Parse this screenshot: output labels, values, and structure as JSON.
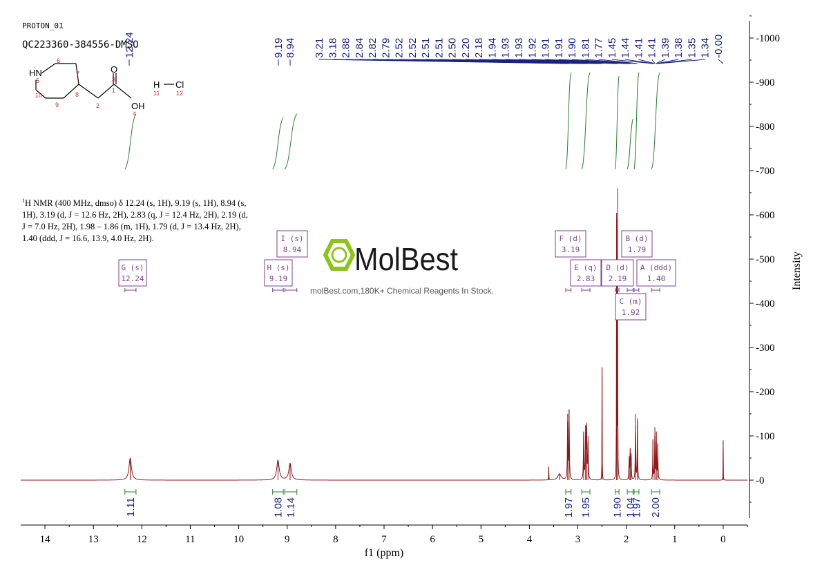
{
  "header": {
    "experiment": "PROTON_01",
    "sample": "QC223360-384556-DMSO"
  },
  "structure": {
    "atoms": {
      "nh": "HN",
      "o_carbonyl": "O",
      "oh": "OH",
      "h": "H",
      "cl": "Cl"
    },
    "numbers": [
      "1",
      "2",
      "3",
      "4",
      "5",
      "6",
      "7",
      "8",
      "9",
      "10",
      "11",
      "12"
    ]
  },
  "nmr_description": {
    "line1": "H NMR (400 MHz, dmso) δ 12.24 (s, 1H), 9.19 (s, 1H), 8.94 (s,",
    "nucleus_sup": "1",
    "line2": "1H), 3.19 (d, J = 12.6 Hz, 2H), 2.83 (q, J = 12.4 Hz, 2H), 2.19 (d,",
    "line3": "J = 7.0 Hz, 2H), 1.98 – 1.86 (m, 1H), 1.79 (d, J = 13.4 Hz, 2H),",
    "line4": "1.40 (ddd, J = 16.6, 13.9, 4.0 Hz, 2H)."
  },
  "watermark": {
    "brand": "MolBest",
    "tagline": "molBest.com,180K+ Chemical Reagents In Stock.",
    "color": "#8dc21f"
  },
  "chart_data": {
    "type": "line",
    "xlabel": "f1 (ppm)",
    "ylabel": "Intensity",
    "xlim": [
      14.5,
      -0.5
    ],
    "ylim": [
      -100,
      1050
    ],
    "x_ticks": [
      14,
      13,
      12,
      11,
      10,
      9,
      8,
      7,
      6,
      5,
      4,
      3,
      2,
      1,
      0
    ],
    "y_ticks": [
      0,
      100,
      200,
      300,
      400,
      500,
      600,
      700,
      800,
      900,
      1000
    ],
    "peak_labels": [
      "12.24",
      "9.19",
      "8.94",
      "3.21",
      "3.18",
      "2.88",
      "2.84",
      "2.82",
      "2.79",
      "2.52",
      "2.52",
      "2.51",
      "2.51",
      "2.50",
      "2.20",
      "2.18",
      "1.94",
      "1.93",
      "1.93",
      "1.92",
      "1.91",
      "1.91",
      "1.90",
      "1.81",
      "1.77",
      "1.45",
      "1.44",
      "1.41",
      "1.41",
      "1.39",
      "1.38",
      "1.35",
      "1.34",
      "-0.00"
    ],
    "peaks": [
      {
        "ppm": 12.24,
        "height": 50,
        "width": 0.06
      },
      {
        "ppm": 9.19,
        "height": 45,
        "width": 0.06
      },
      {
        "ppm": 8.94,
        "height": 38,
        "width": 0.06
      },
      {
        "ppm": 3.6,
        "height": 30,
        "width": 0.006
      },
      {
        "ppm": 3.38,
        "height": 14,
        "width": 0.08
      },
      {
        "ppm": 3.21,
        "height": 150,
        "width": 0.012
      },
      {
        "ppm": 3.18,
        "height": 160,
        "width": 0.012
      },
      {
        "ppm": 2.88,
        "height": 110,
        "width": 0.012
      },
      {
        "ppm": 2.84,
        "height": 125,
        "width": 0.012
      },
      {
        "ppm": 2.82,
        "height": 120,
        "width": 0.012
      },
      {
        "ppm": 2.79,
        "height": 100,
        "width": 0.012
      },
      {
        "ppm": 2.5,
        "height": 255,
        "width": 0.005
      },
      {
        "ppm": 2.2,
        "height": 590,
        "width": 0.006
      },
      {
        "ppm": 2.18,
        "height": 660,
        "width": 0.006
      },
      {
        "ppm": 1.94,
        "height": 55,
        "width": 0.01
      },
      {
        "ppm": 1.92,
        "height": 70,
        "width": 0.01
      },
      {
        "ppm": 1.9,
        "height": 55,
        "width": 0.01
      },
      {
        "ppm": 1.81,
        "height": 150,
        "width": 0.01
      },
      {
        "ppm": 1.77,
        "height": 140,
        "width": 0.01
      },
      {
        "ppm": 1.45,
        "height": 90,
        "width": 0.01
      },
      {
        "ppm": 1.41,
        "height": 120,
        "width": 0.01
      },
      {
        "ppm": 1.38,
        "height": 110,
        "width": 0.01
      },
      {
        "ppm": 1.35,
        "height": 80,
        "width": 0.01
      },
      {
        "ppm": 0.0,
        "height": 90,
        "width": 0.004
      }
    ],
    "multiplets": [
      {
        "letter": "G",
        "mult": "s",
        "shift": "12.24",
        "range": [
          12.35,
          12.12
        ]
      },
      {
        "letter": "H",
        "mult": "s",
        "shift": "9.19",
        "range": [
          9.3,
          9.08
        ]
      },
      {
        "letter": "I",
        "mult": "s",
        "shift": "8.94",
        "range": [
          9.05,
          8.8
        ]
      },
      {
        "letter": "F",
        "mult": "d",
        "shift": "3.19",
        "range": [
          3.25,
          3.14
        ]
      },
      {
        "letter": "E",
        "mult": "q",
        "shift": "2.83",
        "range": [
          2.92,
          2.75
        ]
      },
      {
        "letter": "D",
        "mult": "d",
        "shift": "2.19",
        "range": [
          2.23,
          2.15
        ]
      },
      {
        "letter": "C",
        "mult": "m",
        "shift": "1.92",
        "range": [
          1.98,
          1.86
        ]
      },
      {
        "letter": "B",
        "mult": "d",
        "shift": "1.79",
        "range": [
          1.84,
          1.74
        ]
      },
      {
        "letter": "A",
        "mult": "ddd",
        "shift": "1.40",
        "range": [
          1.48,
          1.31
        ]
      }
    ],
    "integrals": [
      {
        "value": "1.11",
        "range": [
          12.35,
          12.12
        ]
      },
      {
        "value": "1.08",
        "range": [
          9.3,
          9.08
        ]
      },
      {
        "value": "1.14",
        "range": [
          9.05,
          8.8
        ]
      },
      {
        "value": "1.97",
        "range": [
          3.25,
          3.14
        ]
      },
      {
        "value": "1.95",
        "range": [
          2.92,
          2.75
        ]
      },
      {
        "value": "1.90",
        "range": [
          2.23,
          2.15
        ]
      },
      {
        "value": "1.04",
        "range": [
          1.98,
          1.86
        ]
      },
      {
        "value": "1.97",
        "range": [
          1.84,
          1.74
        ]
      },
      {
        "value": "2.00",
        "range": [
          1.48,
          1.31
        ]
      }
    ],
    "colors": {
      "spectrum": "#8b1a1a",
      "peak_label": "#1a237e",
      "integral": "#2e7d32",
      "multiplet_box": "#7b3f8f",
      "axis": "#000000"
    },
    "grid": false
  }
}
